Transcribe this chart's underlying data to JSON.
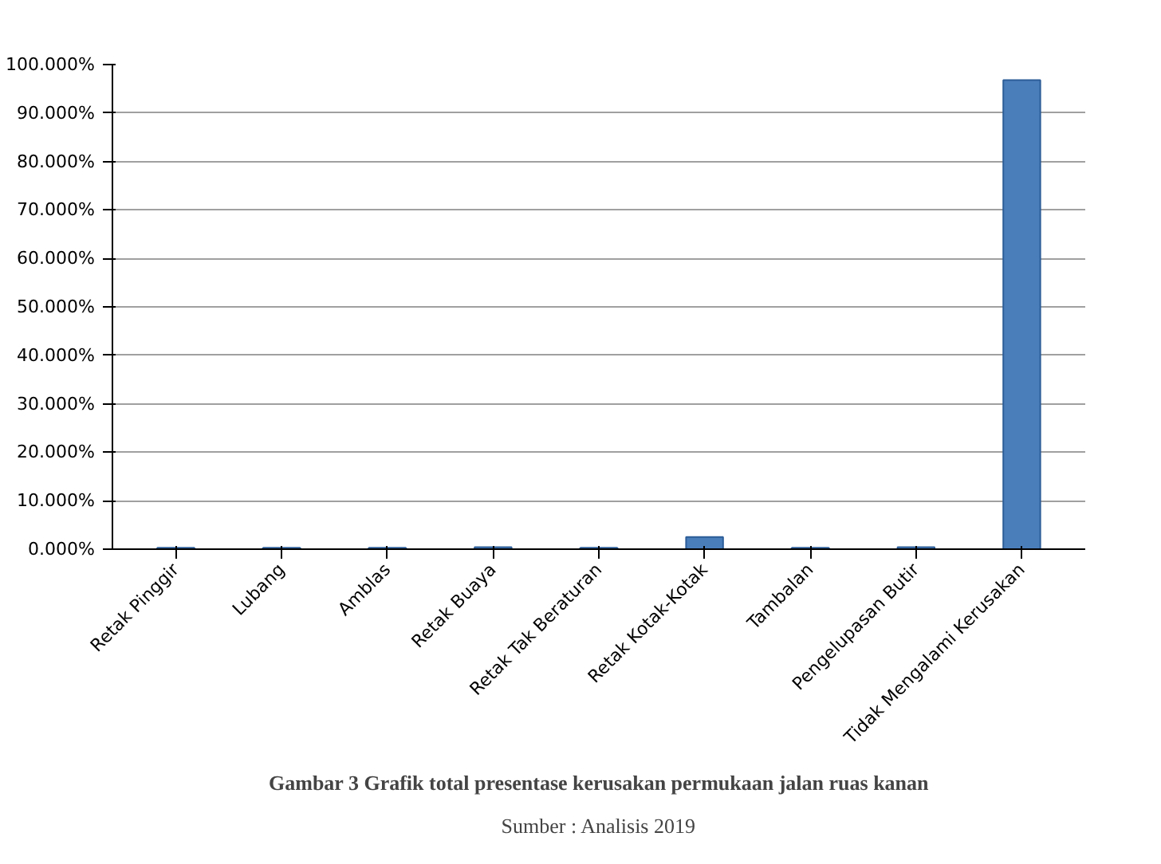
{
  "chart_data": {
    "type": "bar",
    "categories": [
      "Retak Pinggir",
      "Lubang",
      "Amblas",
      "Retak Buaya",
      "Retak Tak Beraturan",
      "Retak Kotak-Kotak",
      "Tambalan",
      "Pengelupasan Butir",
      "Tidak Mengalami Kerusakan"
    ],
    "values": [
      0.3,
      0.3,
      0.3,
      0.4,
      0.3,
      2.5,
      0.3,
      0.4,
      96.8
    ],
    "color": "#4a7ebb",
    "ylim": [
      0,
      100
    ],
    "yticks": [
      {
        "value": 0,
        "label": "0.000%"
      },
      {
        "value": 10,
        "label": "10.000%"
      },
      {
        "value": 20,
        "label": "20.000%"
      },
      {
        "value": 30,
        "label": "30.000%"
      },
      {
        "value": 40,
        "label": "40.000%"
      },
      {
        "value": 50,
        "label": "50.000%"
      },
      {
        "value": 60,
        "label": "60.000%"
      },
      {
        "value": 70,
        "label": "70.000%"
      },
      {
        "value": 80,
        "label": "80.000%"
      },
      {
        "value": 90,
        "label": "90.000%"
      },
      {
        "value": 100,
        "label": "100.000%"
      }
    ],
    "grid": "y",
    "annotations": [
      "Gambar 3 Grafik total presentase kerusakan permukaan jalan ruas kanan",
      "Sumber : Analisis 2019"
    ]
  }
}
